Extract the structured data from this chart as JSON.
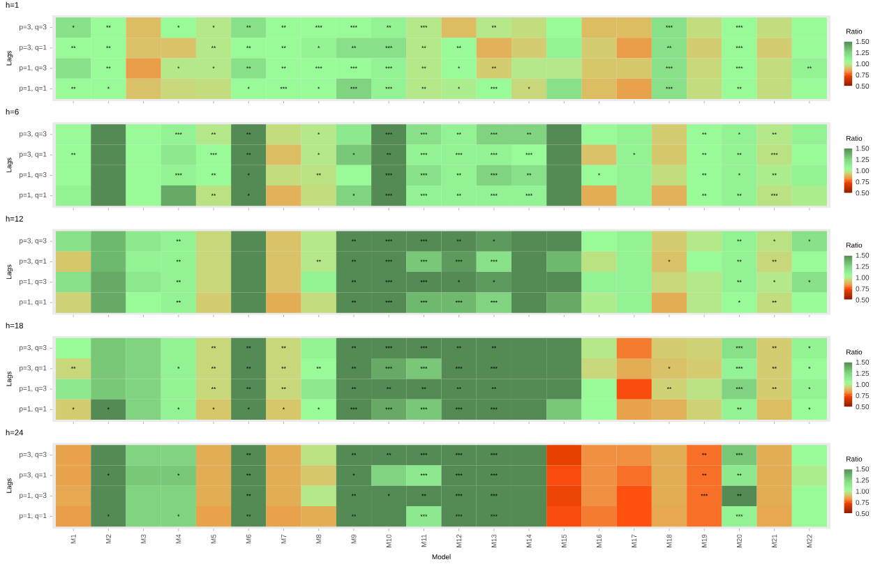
{
  "chart_data": [
    {
      "type": "heatmap",
      "title": "h=1",
      "ylabel": "Lags",
      "clabel": "Ratio",
      "tick_labels": "y",
      "categories": [
        null,
        null,
        null,
        null,
        null,
        null,
        null,
        null,
        null,
        null,
        null,
        null,
        null,
        null,
        null,
        null,
        null,
        null,
        null,
        null,
        null,
        null
      ],
      "y_categories": [
        "p=3, q=3",
        "p=3, q=1",
        "p=1, q=3",
        "p=1, q=1"
      ],
      "cells": [
        [
          1.2,
          1.05,
          0.9,
          1.05,
          0.98,
          1.2,
          1.05,
          1.05,
          1.05,
          1.1,
          0.98,
          0.9,
          0.98,
          0.96,
          1.05,
          0.9,
          0.9,
          1.2,
          0.96,
          1.05,
          0.96,
          1.05
        ],
        [
          1.05,
          1.05,
          0.91,
          0.91,
          0.98,
          1.05,
          1.05,
          1.1,
          1.2,
          1.2,
          0.98,
          1.05,
          0.88,
          0.93,
          1.1,
          0.93,
          0.84,
          1.2,
          0.93,
          1.05,
          0.93,
          1.05
        ],
        [
          1.2,
          1.05,
          0.84,
          0.98,
          0.98,
          1.2,
          1.05,
          1.05,
          1.05,
          1.1,
          0.98,
          1.05,
          0.93,
          0.98,
          0.98,
          0.92,
          0.92,
          1.2,
          0.95,
          1.05,
          0.96,
          1.1
        ],
        [
          1.05,
          1.05,
          0.91,
          0.95,
          0.96,
          1.05,
          1.05,
          1.05,
          1.25,
          1.1,
          0.98,
          1.0,
          1.05,
          0.95,
          1.2,
          0.9,
          0.85,
          1.2,
          0.96,
          1.05,
          0.96,
          1.05
        ]
      ],
      "cell_labels": [
        [
          "*",
          "**",
          null,
          "*",
          "*",
          "**",
          "**",
          "***",
          "***",
          "**",
          "***",
          null,
          "**",
          null,
          null,
          null,
          null,
          "***",
          null,
          "***",
          null,
          null
        ],
        [
          "**",
          "**",
          null,
          null,
          "**",
          "**",
          "**",
          "*",
          "**",
          "***",
          "**",
          "**",
          null,
          null,
          null,
          null,
          null,
          "**",
          null,
          "***",
          null,
          null
        ],
        [
          null,
          "**",
          null,
          "*",
          "*",
          "**",
          "**",
          "***",
          "***",
          "***",
          "**",
          "*",
          "**",
          null,
          null,
          null,
          null,
          "***",
          null,
          "***",
          null,
          "**"
        ],
        [
          "**",
          "*",
          null,
          null,
          null,
          "*",
          "***",
          "*",
          "***",
          "***",
          "**",
          "*",
          "***",
          "*",
          null,
          null,
          null,
          "***",
          null,
          "**",
          null,
          null
        ]
      ],
      "clim": [
        0.5,
        1.5
      ],
      "cticks": [
        {
          "value": 0.5,
          "label": "0.50"
        },
        {
          "value": 0.75,
          "label": "0.75"
        },
        {
          "value": 1.0,
          "label": "1.00"
        },
        {
          "value": 1.25,
          "label": "1.25"
        },
        {
          "value": 1.5,
          "label": "1.50"
        }
      ]
    },
    {
      "type": "heatmap",
      "title": "h=6",
      "ylabel": "Lags",
      "clabel": "Ratio",
      "tick_labels": "y",
      "categories": [
        null,
        null,
        null,
        null,
        null,
        null,
        null,
        null,
        null,
        null,
        null,
        null,
        null,
        null,
        null,
        null,
        null,
        null,
        null,
        null,
        null,
        null
      ],
      "y_categories": [
        "p=3, q=3",
        "p=3, q=1",
        "p=1, q=3",
        "p=1, q=1"
      ],
      "cells": [
        [
          1.05,
          1.5,
          1.05,
          1.1,
          0.98,
          1.5,
          0.96,
          0.98,
          1.15,
          1.5,
          1.2,
          1.1,
          1.25,
          1.25,
          1.5,
          1.05,
          1.1,
          0.93,
          1.05,
          1.1,
          0.98,
          1.1
        ],
        [
          1.05,
          1.5,
          1.05,
          1.15,
          1.05,
          1.5,
          0.9,
          0.98,
          1.3,
          1.5,
          1.1,
          1.1,
          1.1,
          1.05,
          1.5,
          0.91,
          1.1,
          0.92,
          1.05,
          1.1,
          0.97,
          1.05
        ],
        [
          1.05,
          1.5,
          1.05,
          1.1,
          1.05,
          1.5,
          0.96,
          0.97,
          1.05,
          1.5,
          1.2,
          1.1,
          1.25,
          1.2,
          1.5,
          1.05,
          1.1,
          0.96,
          1.05,
          1.1,
          1.0,
          1.1
        ],
        [
          1.1,
          1.5,
          1.05,
          1.4,
          0.97,
          1.5,
          0.88,
          0.96,
          1.25,
          1.5,
          1.1,
          1.1,
          1.1,
          1.1,
          1.5,
          0.87,
          1.1,
          0.88,
          1.05,
          1.1,
          0.97,
          1.0
        ]
      ],
      "cell_labels": [
        [
          null,
          null,
          null,
          "***",
          "**",
          "**",
          null,
          "*",
          null,
          "***",
          "***",
          "**",
          "***",
          "**",
          null,
          null,
          null,
          null,
          "**",
          "*",
          "**",
          null
        ],
        [
          "**",
          null,
          null,
          null,
          "***",
          "**",
          null,
          "*",
          "*",
          "**",
          "***",
          "***",
          "***",
          "***",
          null,
          null,
          "*",
          null,
          "**",
          "**",
          "***",
          null
        ],
        [
          null,
          null,
          null,
          "***",
          "**",
          "*",
          null,
          "**",
          null,
          "***",
          "***",
          "**",
          "***",
          "**",
          null,
          "*",
          null,
          null,
          "**",
          "*",
          "**",
          null
        ],
        [
          null,
          null,
          null,
          null,
          "**",
          "*",
          null,
          null,
          "*",
          "***",
          "***",
          "**",
          "***",
          "***",
          null,
          null,
          null,
          null,
          "**",
          "**",
          "***",
          null
        ]
      ],
      "clim": [
        0.5,
        1.5
      ],
      "cticks": [
        {
          "value": 0.5,
          "label": "0.50"
        },
        {
          "value": 0.75,
          "label": "0.75"
        },
        {
          "value": 1.0,
          "label": "1.00"
        },
        {
          "value": 1.25,
          "label": "1.25"
        },
        {
          "value": 1.5,
          "label": "1.50"
        }
      ]
    },
    {
      "type": "heatmap",
      "title": "h=12",
      "ylabel": "Lags",
      "clabel": "Ratio",
      "tick_labels": "y",
      "categories": [
        null,
        null,
        null,
        null,
        null,
        null,
        null,
        null,
        null,
        null,
        null,
        null,
        null,
        null,
        null,
        null,
        null,
        null,
        null,
        null,
        null,
        null
      ],
      "y_categories": [
        "p=3, q=3",
        "p=3, q=1",
        "p=1, q=3",
        "p=1, q=1"
      ],
      "cells": [
        [
          1.2,
          1.35,
          1.15,
          1.1,
          0.95,
          1.5,
          0.91,
          0.98,
          1.5,
          1.5,
          1.5,
          1.5,
          1.45,
          1.5,
          1.5,
          1.05,
          1.1,
          0.93,
          0.98,
          1.1,
          0.97,
          1.2
        ],
        [
          0.92,
          1.35,
          1.1,
          1.1,
          0.95,
          1.5,
          0.91,
          0.98,
          1.5,
          1.5,
          1.3,
          1.45,
          1.2,
          1.5,
          1.35,
          0.97,
          1.1,
          0.91,
          1.05,
          1.1,
          0.95,
          1.05
        ],
        [
          1.2,
          1.4,
          1.15,
          1.1,
          0.95,
          1.5,
          0.91,
          1.1,
          1.5,
          1.5,
          1.5,
          1.5,
          1.45,
          1.5,
          1.5,
          1.1,
          1.1,
          0.95,
          0.98,
          1.1,
          0.98,
          1.2
        ],
        [
          0.94,
          1.4,
          1.05,
          1.1,
          0.93,
          1.5,
          0.87,
          0.96,
          1.5,
          1.5,
          1.35,
          1.35,
          1.25,
          1.5,
          1.4,
          1.0,
          1.1,
          0.87,
          0.98,
          1.05,
          0.96,
          1.05
        ]
      ],
      "cell_labels": [
        [
          null,
          null,
          null,
          "**",
          null,
          null,
          null,
          null,
          "**",
          "***",
          "***",
          "**",
          "*",
          null,
          null,
          null,
          null,
          null,
          null,
          "**",
          "*",
          "*"
        ],
        [
          null,
          null,
          null,
          "**",
          null,
          null,
          null,
          "**",
          "**",
          "***",
          "***",
          "***",
          "***",
          null,
          null,
          null,
          null,
          "*",
          null,
          "**",
          "**",
          null
        ],
        [
          null,
          null,
          null,
          "**",
          null,
          null,
          null,
          null,
          "**",
          "***",
          "***",
          "*",
          "*",
          null,
          null,
          null,
          null,
          null,
          null,
          "**",
          "*",
          "*"
        ],
        [
          null,
          null,
          null,
          "**",
          null,
          null,
          null,
          null,
          "**",
          "***",
          "***",
          "***",
          "***",
          null,
          null,
          null,
          null,
          null,
          null,
          "*",
          "**",
          null
        ]
      ],
      "clim": [
        0.5,
        1.5
      ],
      "cticks": [
        {
          "value": 0.5,
          "label": "0.50"
        },
        {
          "value": 0.75,
          "label": "0.75"
        },
        {
          "value": 1.0,
          "label": "1.00"
        },
        {
          "value": 1.25,
          "label": "1.25"
        },
        {
          "value": 1.5,
          "label": "1.50"
        }
      ]
    },
    {
      "type": "heatmap",
      "title": "h=18",
      "ylabel": "Lags",
      "clabel": "Ratio",
      "tick_labels": "y",
      "categories": [
        null,
        null,
        null,
        null,
        null,
        null,
        null,
        null,
        null,
        null,
        null,
        null,
        null,
        null,
        null,
        null,
        null,
        null,
        null,
        null,
        null,
        null
      ],
      "y_categories": [
        "p=3, q=3",
        "p=3, q=1",
        "p=1, q=3",
        "p=1, q=1"
      ],
      "cells": [
        [
          1.05,
          1.3,
          1.25,
          1.1,
          0.95,
          1.5,
          0.95,
          1.1,
          1.5,
          1.5,
          1.5,
          1.5,
          1.5,
          1.5,
          1.5,
          0.98,
          0.8,
          0.93,
          0.94,
          1.2,
          0.93,
          1.1
        ],
        [
          0.95,
          1.3,
          1.25,
          1.1,
          0.95,
          1.5,
          0.95,
          1.05,
          1.5,
          1.4,
          1.3,
          1.5,
          1.5,
          1.5,
          1.5,
          0.95,
          0.87,
          0.91,
          0.93,
          1.1,
          0.93,
          1.05
        ],
        [
          1.15,
          1.3,
          1.25,
          1.1,
          0.95,
          1.5,
          0.95,
          1.15,
          1.5,
          1.5,
          1.5,
          1.5,
          1.5,
          1.5,
          1.5,
          1.05,
          0.75,
          0.94,
          0.97,
          1.25,
          0.93,
          1.1
        ],
        [
          0.93,
          1.5,
          1.25,
          1.1,
          0.92,
          1.5,
          0.92,
          1.05,
          1.5,
          1.4,
          1.3,
          1.5,
          1.5,
          1.5,
          1.3,
          1.05,
          0.85,
          0.88,
          0.94,
          1.1,
          0.9,
          1.05
        ]
      ],
      "cell_labels": [
        [
          null,
          null,
          null,
          null,
          "**",
          "**",
          "**",
          null,
          "**",
          "***",
          "***",
          "**",
          "**",
          null,
          null,
          null,
          null,
          null,
          null,
          "***",
          "**",
          "*"
        ],
        [
          "**",
          null,
          null,
          "*",
          "**",
          "**",
          "**",
          "**",
          "**",
          "***",
          "***",
          "***",
          "***",
          null,
          null,
          null,
          null,
          "*",
          null,
          "***",
          "**",
          "*"
        ],
        [
          null,
          null,
          null,
          null,
          "**",
          "**",
          "**",
          null,
          "**",
          "**",
          "**",
          "**",
          "**",
          null,
          null,
          null,
          null,
          "**",
          null,
          "***",
          "**",
          "*"
        ],
        [
          "*",
          "*",
          null,
          "*",
          "*",
          "*",
          "*",
          "*",
          "***",
          "***",
          "***",
          "***",
          "***",
          null,
          null,
          null,
          null,
          null,
          null,
          "**",
          null,
          "*"
        ]
      ],
      "clim": [
        0.5,
        1.5
      ],
      "cticks": [
        {
          "value": 0.5,
          "label": "0.50"
        },
        {
          "value": 0.75,
          "label": "0.75"
        },
        {
          "value": 1.0,
          "label": "1.00"
        },
        {
          "value": 1.25,
          "label": "1.25"
        },
        {
          "value": 1.5,
          "label": "1.50"
        }
      ]
    },
    {
      "type": "heatmap",
      "title": "h=24",
      "ylabel": "Lags",
      "xlabel": "Model",
      "clabel": "Ratio",
      "categories": [
        "M1",
        "M2",
        "M3",
        "M4",
        "M5",
        "M6",
        "M7",
        "M8",
        "M9",
        "M10",
        "M11",
        "M12",
        "M13",
        "M14",
        "M15",
        "M16",
        "M17",
        "M18",
        "M19",
        "M20",
        "M21",
        "M22"
      ],
      "y_categories": [
        "p=3, q=3",
        "p=3, q=1",
        "p=1, q=3",
        "p=1, q=1"
      ],
      "cells": [
        [
          0.85,
          1.5,
          1.25,
          1.25,
          0.87,
          1.5,
          0.87,
          0.97,
          1.5,
          1.5,
          1.5,
          1.5,
          1.5,
          1.5,
          0.72,
          0.82,
          0.82,
          0.87,
          0.79,
          1.3,
          0.87,
          1.05
        ],
        [
          0.85,
          1.5,
          1.3,
          1.3,
          0.87,
          1.5,
          0.87,
          0.92,
          1.5,
          1.25,
          1.15,
          1.5,
          1.5,
          1.5,
          0.75,
          0.82,
          0.79,
          0.87,
          0.79,
          1.15,
          0.87,
          1.0
        ],
        [
          0.86,
          1.5,
          1.25,
          1.25,
          0.87,
          1.5,
          0.87,
          0.98,
          1.5,
          1.5,
          1.5,
          1.5,
          1.5,
          1.5,
          0.73,
          0.82,
          0.76,
          0.87,
          0.79,
          1.5,
          0.87,
          1.05
        ],
        [
          0.84,
          1.5,
          1.25,
          1.25,
          0.85,
          1.5,
          0.85,
          0.87,
          1.5,
          1.5,
          1.15,
          1.5,
          1.5,
          1.5,
          0.75,
          0.8,
          0.76,
          0.86,
          0.79,
          1.1,
          0.86,
          1.05
        ]
      ],
      "cell_labels": [
        [
          null,
          null,
          null,
          null,
          null,
          "**",
          null,
          null,
          "**",
          "**",
          "***",
          "***",
          "***",
          null,
          null,
          null,
          null,
          null,
          "**",
          "***",
          null,
          null
        ],
        [
          null,
          "*",
          null,
          "*",
          null,
          "**",
          null,
          null,
          "*",
          null,
          "***",
          "***",
          "***",
          null,
          null,
          null,
          null,
          null,
          "**",
          "**",
          null,
          null
        ],
        [
          null,
          null,
          null,
          null,
          null,
          "**",
          null,
          null,
          "**",
          "*",
          "**",
          "***",
          "***",
          null,
          null,
          null,
          null,
          null,
          "***",
          "**",
          null,
          null
        ],
        [
          null,
          "*",
          null,
          "*",
          null,
          "**",
          null,
          null,
          "**",
          null,
          "***",
          "***",
          "***",
          null,
          null,
          null,
          null,
          null,
          null,
          "***",
          null,
          null
        ]
      ],
      "clim": [
        0.5,
        1.5
      ],
      "cticks": [
        {
          "value": 0.5,
          "label": "0.50"
        },
        {
          "value": 0.75,
          "label": "0.75"
        },
        {
          "value": 1.0,
          "label": "1.00"
        },
        {
          "value": 1.25,
          "label": "1.25"
        },
        {
          "value": 1.5,
          "label": "1.50"
        }
      ]
    }
  ]
}
